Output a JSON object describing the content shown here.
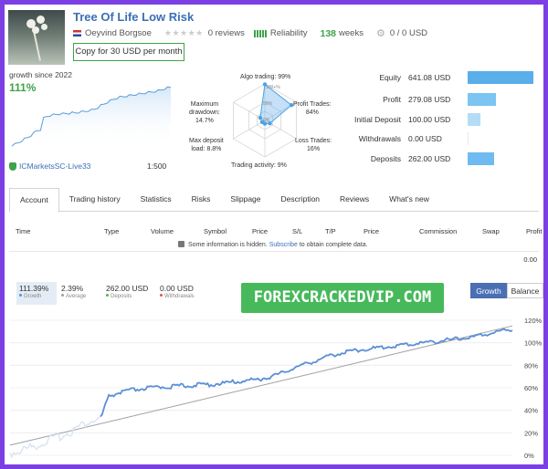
{
  "header": {
    "title": "Tree Of Life Low Risk",
    "author": "Oeyvind Borgsoe",
    "reviews": "0 reviews",
    "reliability_label": "Reliability",
    "weeks_value": "138",
    "weeks_label": "weeks",
    "copies": "0 / 0 USD",
    "copy_button": "Copy for 30 USD per month"
  },
  "growth": {
    "label": "growth since 2022",
    "value": "111%",
    "broker": "ICMarketsSC-Live33",
    "leverage": "1:500"
  },
  "radar": {
    "labels": [
      {
        "text": "Algo trading: 99%",
        "value": 99
      },
      {
        "text": "Profit Trades:\n84%",
        "value": 84
      },
      {
        "text": "Loss Trades:\n16%",
        "value": 16
      },
      {
        "text": "Trading activity: 9%",
        "value": 9
      },
      {
        "text": "Max deposit\nload: 8.8%",
        "value": 8.8
      },
      {
        "text": "Maximum\ndrawdown:\n14.7%",
        "value": 14.7
      }
    ],
    "ring_labels": [
      "100+%",
      "50%",
      "0%"
    ]
  },
  "stats": [
    {
      "label": "Equity",
      "value": "641.08 USD",
      "bar": 641.08
    },
    {
      "label": "Profit",
      "value": "279.08 USD",
      "bar": 279.08
    },
    {
      "label": "Initial Deposit",
      "value": "100.00 USD",
      "bar": 100.0
    },
    {
      "label": "Withdrawals",
      "value": "0.00 USD",
      "bar": 0
    },
    {
      "label": "Deposits",
      "value": "262.00 USD",
      "bar": 262.0
    }
  ],
  "tabs": [
    "Account",
    "Trading history",
    "Statistics",
    "Risks",
    "Slippage",
    "Description",
    "Reviews",
    "What's new"
  ],
  "table": {
    "headers": [
      "Time",
      "Type",
      "Volume",
      "Symbol",
      "Price",
      "S/L",
      "T/P",
      "Price",
      "Commission",
      "Swap",
      "Profit"
    ],
    "hidden_prefix": "Some information is hidden.",
    "hidden_link": "Subscribe",
    "hidden_suffix": "to obtain complete data.",
    "total": "0.00"
  },
  "summary": [
    {
      "value": "111.39%",
      "label": "Growth",
      "color": "#5b8fd6"
    },
    {
      "value": "2.39%",
      "label": "Average",
      "color": "#9aa0a6"
    },
    {
      "value": "262.00 USD",
      "label": "Deposits",
      "color": "#47b95b"
    },
    {
      "value": "0.00 USD",
      "label": "Withdrawals",
      "color": "#e05252"
    }
  ],
  "banner": "FOREXCRACKEDVIP.COM",
  "view_toggle": {
    "growth": "Growth",
    "balance": "Balance"
  },
  "colors": {
    "accent": "#3a6fb5",
    "green": "#3ea34a",
    "bar": "#6fbaf0",
    "line": "#5b8fd6"
  },
  "chart_data": {
    "type": "line",
    "y_ticks": [
      "120%",
      "100%",
      "80%",
      "60%",
      "40%",
      "20%",
      "0%"
    ],
    "ylim": [
      0,
      120
    ],
    "series": [
      {
        "values": [
          0,
          2,
          5,
          8,
          12,
          15,
          19,
          24,
          28,
          30,
          52,
          55,
          57,
          58,
          59,
          60,
          60,
          61,
          61,
          62,
          62,
          63,
          64,
          65,
          66,
          67,
          69,
          72,
          76,
          79,
          82,
          85,
          88,
          90,
          92,
          93,
          94,
          95,
          96,
          97,
          98,
          99,
          100,
          101,
          102,
          103,
          104,
          106,
          108,
          110,
          111
        ]
      }
    ],
    "trend": [
      9,
      115
    ]
  }
}
